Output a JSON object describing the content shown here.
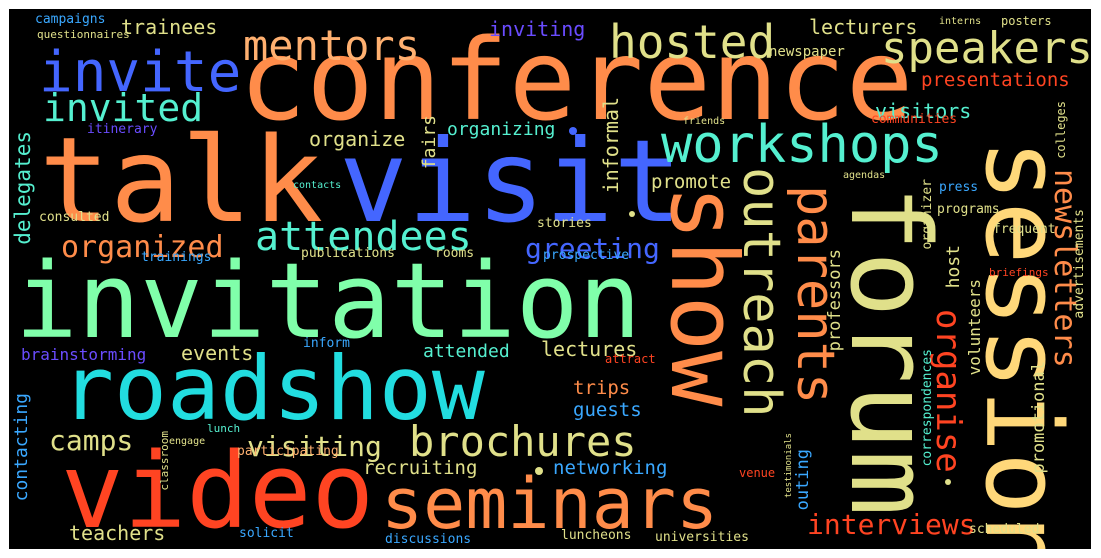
{
  "background": "#000000",
  "palette": {
    "orange": "#ff8c4a",
    "red": "#ff4422",
    "blue": "#4466ff",
    "cyan": "#22dde0",
    "mint": "#80ffaa",
    "aquamarine": "#55f0d0",
    "khaki": "#e0e08a",
    "yellow": "#ffd87a",
    "peach": "#ffb070",
    "sky": "#3aa8ff",
    "violet": "#6a4cff",
    "teal": "#3ad8c8"
  },
  "words": [
    "conference",
    "talk",
    "visit",
    "invitation",
    "roadshow",
    "video",
    "show",
    "forum",
    "session",
    "seminars",
    "invite",
    "invited",
    "mentors",
    "hosted",
    "speakers",
    "workshops",
    "outreach",
    "parents",
    "brochures",
    "attendees",
    "organized",
    "greeting",
    "organise",
    "newsletters",
    "interviews",
    "visiting",
    "camps",
    "presentations",
    "lecturers",
    "visitors",
    "organize",
    "organizing",
    "delegates",
    "informal",
    "fairs",
    "promote",
    "events",
    "lectures",
    "attended",
    "trips",
    "guests",
    "recruiting",
    "networking",
    "teachers",
    "contacting",
    "brainstorming",
    "professors",
    "promotional",
    "volunteers",
    "host",
    "outing",
    "correspondences",
    "advertisements",
    "trainees",
    "campaigns",
    "questionnaires",
    "inviting",
    "newspaper",
    "posters",
    "interns",
    "itinerary",
    "friends",
    "communities",
    "colleges",
    "contacts",
    "agendas",
    "press",
    "consulted",
    "stories",
    "programs",
    "organizer",
    "frequent",
    "trainings",
    "publications",
    "rooms",
    "prospective",
    "briefings",
    "inform",
    "attract",
    "classroom",
    "lunch",
    "engage",
    "participating",
    "testimonials",
    "venue",
    "solicit",
    "discussions",
    "luncheons",
    "universities",
    "scheduled"
  ]
}
